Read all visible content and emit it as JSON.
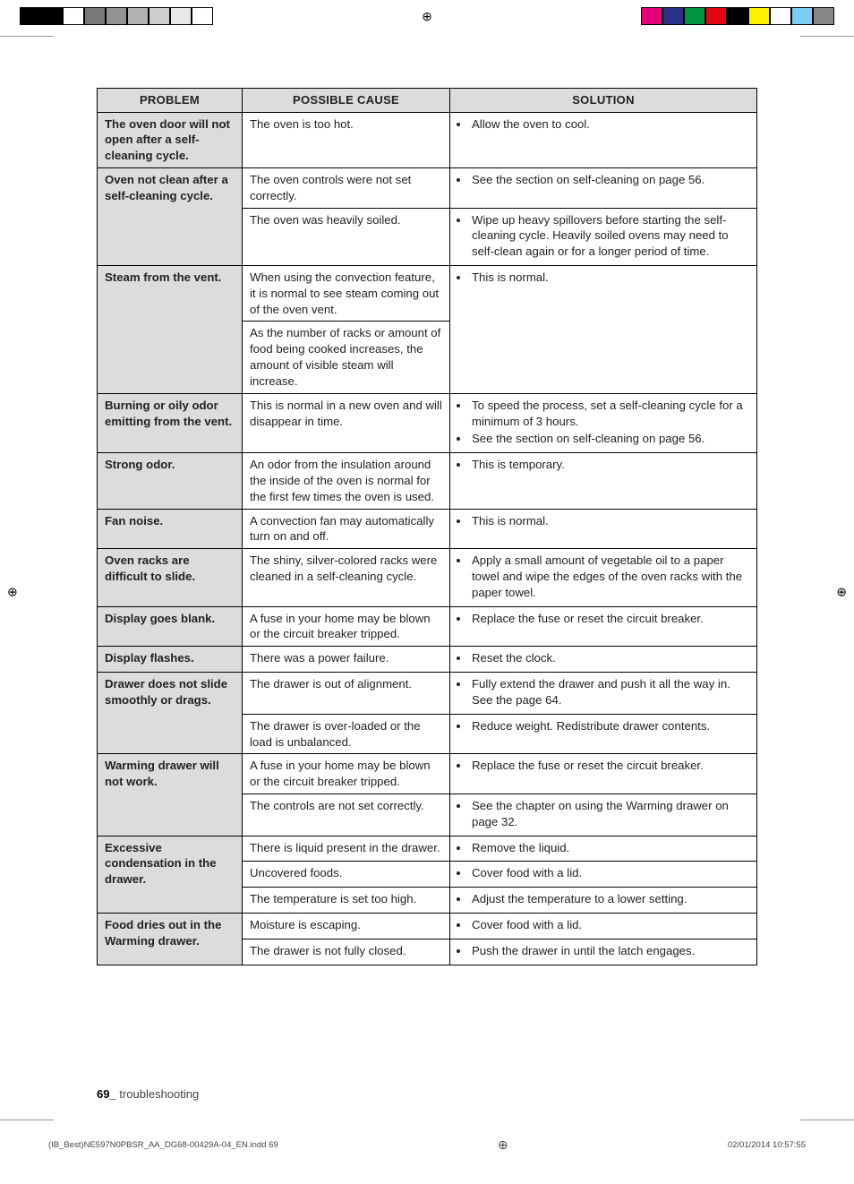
{
  "printer_bars": {
    "left": [
      "#000000",
      "#000000",
      "#ffffff",
      "#797979",
      "#939393",
      "#b2b2b2",
      "#cfcfcf",
      "#e8e8e8",
      "#ffffff"
    ],
    "right": [
      "#e6007e",
      "#2a2f87",
      "#009640",
      "#e30613",
      "#000000",
      "#fff200",
      "#ffffff",
      "#7ccdf4",
      "#878787"
    ]
  },
  "headers": {
    "problem": "PROBLEM",
    "cause": "POSSIBLE CAUSE",
    "solution": "SOLUTION"
  },
  "rows": [
    {
      "problem": "The oven door will not open after a self-cleaning cycle.",
      "groups": [
        {
          "cause": "The oven is too hot.",
          "solutions": [
            "Allow the oven to cool."
          ]
        }
      ]
    },
    {
      "problem": "Oven not clean after a self-cleaning cycle.",
      "groups": [
        {
          "cause": "The oven controls were not set correctly.",
          "solutions": [
            "See the section on self-cleaning on page 56."
          ]
        },
        {
          "cause": "The oven was heavily soiled.",
          "solutions": [
            "Wipe up heavy spillovers before starting the self-cleaning cycle. Heavily soiled ovens may need to self-clean again or for a longer period of time."
          ]
        }
      ]
    },
    {
      "problem": "Steam from the vent.",
      "groups": [
        {
          "cause": "When using the convection feature, it is normal to see steam coming out of the oven vent.",
          "solutions": [
            "This is normal."
          ],
          "sol_rowspan": 2
        },
        {
          "cause": "As the number of racks or amount of food being cooked increases, the amount of visible steam will increase."
        }
      ]
    },
    {
      "problem": "Burning or oily odor emitting from the vent.",
      "groups": [
        {
          "cause": "This is normal in a new oven and will disappear in time.",
          "solutions": [
            "To speed the process, set a self-cleaning cycle for a minimum of 3 hours.",
            "See the section on self-cleaning on page 56."
          ]
        }
      ]
    },
    {
      "problem": "Strong odor.",
      "groups": [
        {
          "cause": "An odor from the insulation around the inside of the oven is normal for the first few times the oven is used.",
          "solutions": [
            "This is temporary."
          ]
        }
      ]
    },
    {
      "problem": "Fan noise.",
      "groups": [
        {
          "cause": "A convection fan may automatically turn on and off.",
          "solutions": [
            "This is normal."
          ]
        }
      ]
    },
    {
      "problem": "Oven racks are difficult to slide.",
      "groups": [
        {
          "cause": "The shiny, silver-colored racks were cleaned in a self-cleaning cycle.",
          "solutions": [
            "Apply a small amount of vegetable oil to a paper towel and wipe the edges of the oven racks with the paper towel."
          ]
        }
      ]
    },
    {
      "problem": "Display goes blank.",
      "groups": [
        {
          "cause": "A fuse in your home may be blown or the circuit breaker tripped.",
          "solutions": [
            "Replace the fuse or reset the circuit breaker."
          ]
        }
      ]
    },
    {
      "problem": "Display flashes.",
      "groups": [
        {
          "cause": "There was a power failure.",
          "solutions": [
            "Reset the clock."
          ]
        }
      ]
    },
    {
      "problem": "Drawer does not slide smoothly or drags.",
      "groups": [
        {
          "cause": "The drawer is out of alignment.",
          "solutions": [
            "Fully extend the drawer and push it all the way in. See the page 64."
          ]
        },
        {
          "cause": "The drawer is over-loaded or the load is unbalanced.",
          "solutions": [
            "Reduce weight. Redistribute drawer contents."
          ]
        }
      ]
    },
    {
      "problem": "Warming drawer will not work.",
      "groups": [
        {
          "cause": "A fuse in your home may be blown or the circuit breaker tripped.",
          "solutions": [
            "Replace the fuse or reset the circuit breaker."
          ]
        },
        {
          "cause": "The controls are not set correctly.",
          "solutions": [
            "See the chapter on using the Warming drawer on page 32."
          ]
        }
      ]
    },
    {
      "problem": "Excessive condensation in the drawer.",
      "groups": [
        {
          "cause": "There is liquid present in the drawer.",
          "solutions": [
            "Remove the liquid."
          ]
        },
        {
          "cause": "Uncovered foods.",
          "solutions": [
            "Cover food with a lid."
          ]
        },
        {
          "cause": "The temperature is set too high.",
          "solutions": [
            "Adjust the temperature to a lower setting."
          ]
        }
      ]
    },
    {
      "problem": "Food dries out in the Warming drawer.",
      "groups": [
        {
          "cause": "Moisture is escaping.",
          "solutions": [
            "Cover food with a lid."
          ]
        },
        {
          "cause": "The drawer is not fully closed.",
          "solutions": [
            "Push the drawer in until the latch engages."
          ]
        }
      ]
    }
  ],
  "footer": {
    "page_num": "69_",
    "section": "troubleshooting",
    "file": "(IB_Best)NE597N0PBSR_AA_DG68-00429A-04_EN.indd   69",
    "timestamp": "02/01/2014   10:57:55"
  }
}
